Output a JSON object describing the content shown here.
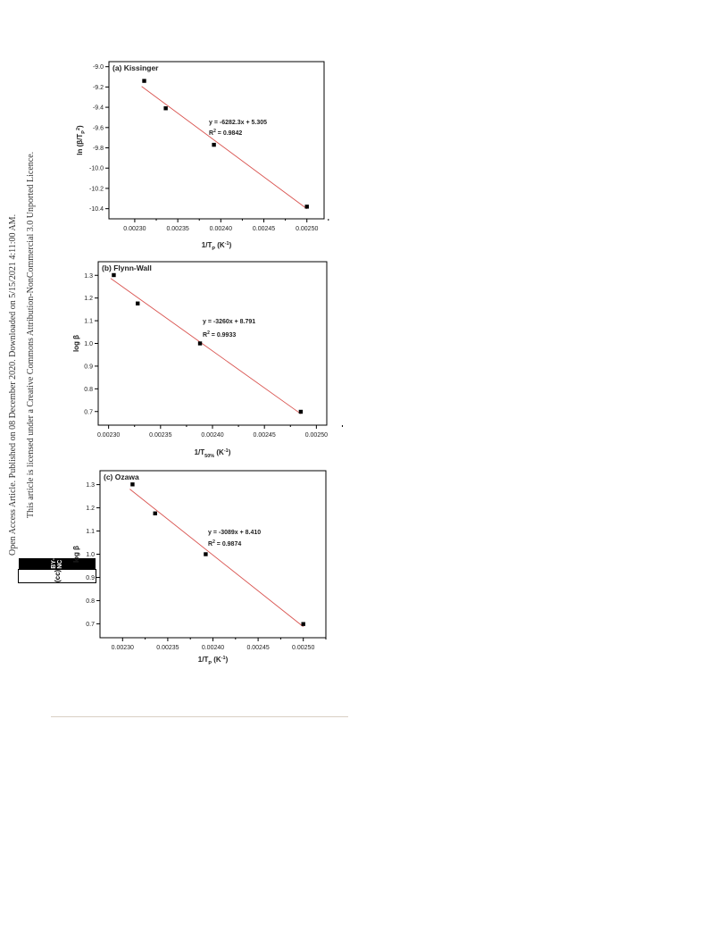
{
  "sidebar": {
    "line1": "Open Access Article. Published on 08 December 2020. Downloaded on 5/15/2021 4:11:00 AM.",
    "line2": "This article is licensed under a Creative Commons Attribution-NonCommercial 3.0 Unported Licence.",
    "badge_cc": "(cc)",
    "badge_text": "BY-NC"
  },
  "colors": {
    "fit_line": "#d9534f",
    "marker": "#000000",
    "axis": "#000000"
  },
  "chart_data": [
    {
      "type": "scatter",
      "title": "(a) Kissinger",
      "xlabel_main": "1/T",
      "xlabel_sub": "P",
      "xlabel_unit": " (K",
      "xlabel_unit_sup": "-1",
      "xlabel_unit_end": ")",
      "ylabel": "ln (β/T",
      "ylabel_sub": "P",
      "ylabel_sup": "2",
      "ylabel_end": ")",
      "equation": "y = -6282.3x + 5.305",
      "r2_label": "R",
      "r2_sup": "2",
      "r2_value": " = 0.9842",
      "xlim": [
        0.00227,
        0.00252
      ],
      "ylim": [
        -10.5,
        -8.95
      ],
      "xticks": [
        0.0023,
        0.00235,
        0.0024,
        0.00245,
        0.0025
      ],
      "xtick_labels": [
        "0.00230",
        "0.00235",
        "0.00240",
        "0.00245",
        "0.00250"
      ],
      "yticks": [
        -9.0,
        -9.2,
        -9.4,
        -9.6,
        -9.8,
        -10.0,
        -10.2,
        -10.4
      ],
      "ytick_labels": [
        "-9.0",
        "-9.2",
        "-9.4",
        "-9.6",
        "-9.8",
        "-10.0",
        "-10.2",
        "-10.4"
      ],
      "x": [
        0.002311,
        0.002336,
        0.002392,
        0.0025
      ],
      "y": [
        -9.14,
        -9.41,
        -9.77,
        -10.38
      ],
      "fit": {
        "slope": -6282.3,
        "intercept": 5.305,
        "x_range": [
          0.002311,
          0.0025
        ]
      }
    },
    {
      "type": "scatter",
      "title": "(b) Flynn-Wall",
      "xlabel_main": "1/T",
      "xlabel_sub": "50%",
      "xlabel_unit": " (K",
      "xlabel_unit_sup": "-1",
      "xlabel_unit_end": ")",
      "ylabel": "log β",
      "ylabel_sub": "",
      "ylabel_sup": "",
      "ylabel_end": "",
      "equation": "y = -3260x + 8.791",
      "r2_label": "R",
      "r2_sup": "2",
      "r2_value": " = 0.9933",
      "xlim": [
        0.00229,
        0.00251
      ],
      "ylim": [
        0.64,
        1.36
      ],
      "xticks": [
        0.0023,
        0.00235,
        0.0024,
        0.00245,
        0.0025
      ],
      "xtick_labels": [
        "0.00230",
        "0.00235",
        "0.00240",
        "0.00245",
        "0.00250"
      ],
      "yticks": [
        0.7,
        0.8,
        0.9,
        1.0,
        1.1,
        1.2,
        1.3
      ],
      "ytick_labels": [
        "0.7",
        "0.8",
        "0.9",
        "1.0",
        "1.1",
        "1.2",
        "1.3"
      ],
      "x": [
        0.002305,
        0.002328,
        0.002388,
        0.002485
      ],
      "y": [
        1.301,
        1.176,
        1.0,
        0.699
      ],
      "fit": {
        "slope": -3260,
        "intercept": 8.791,
        "x_range": [
          0.002305,
          0.002485
        ]
      }
    },
    {
      "type": "scatter",
      "title": "(c) Ozawa",
      "xlabel_main": "1/T",
      "xlabel_sub": "P",
      "xlabel_unit": " (K",
      "xlabel_unit_sup": "-1",
      "xlabel_unit_end": ")",
      "ylabel": "log β",
      "ylabel_sub": "",
      "ylabel_sup": "",
      "ylabel_end": "",
      "equation": "y = -3089x + 8.410",
      "r2_label": "R",
      "r2_sup": "2",
      "r2_value": " = 0.9874",
      "xlim": [
        0.002275,
        0.002525
      ],
      "ylim": [
        0.64,
        1.36
      ],
      "xticks": [
        0.0023,
        0.00235,
        0.0024,
        0.00245,
        0.0025
      ],
      "xtick_labels": [
        "0.00230",
        "0.00235",
        "0.00240",
        "0.00245",
        "0.00250"
      ],
      "yticks": [
        0.7,
        0.8,
        0.9,
        1.0,
        1.1,
        1.2,
        1.3
      ],
      "ytick_labels": [
        "0.7",
        "0.8",
        "0.9",
        "1.0",
        "1.1",
        "1.2",
        "1.3"
      ],
      "x": [
        0.002311,
        0.002336,
        0.002392,
        0.0025
      ],
      "y": [
        1.301,
        1.176,
        1.0,
        0.699
      ],
      "fit": {
        "slope": -3089,
        "intercept": 8.41,
        "x_range": [
          0.002311,
          0.0025
        ]
      }
    }
  ]
}
